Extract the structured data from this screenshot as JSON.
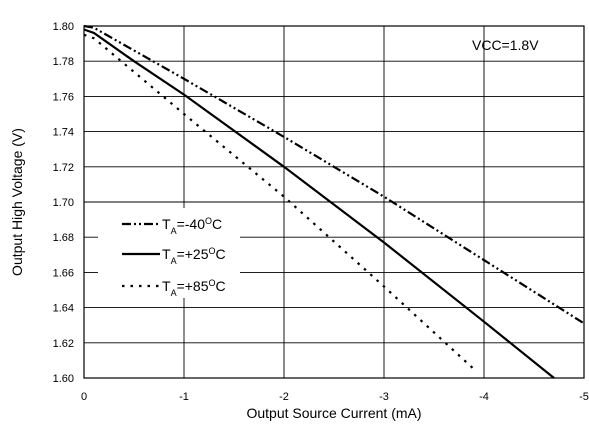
{
  "chart_data": {
    "type": "line",
    "title": "",
    "xlabel": "Output Source Current (mA)",
    "ylabel": "Output High Voltage (V)",
    "xlim": [
      0,
      -5
    ],
    "ylim": [
      1.6,
      1.8
    ],
    "x_ticks": [
      "0",
      "-1",
      "-2",
      "-3",
      "-4",
      "-5"
    ],
    "y_ticks": [
      "1.80",
      "1.78",
      "1.76",
      "1.74",
      "1.72",
      "1.70",
      "1.68",
      "1.66",
      "1.64",
      "1.62",
      "1.60"
    ],
    "grid": true,
    "annotation": "VCC=1.8V",
    "legend_placement": "center-left",
    "series": [
      {
        "name": "TA=-40OC",
        "legend": {
          "prefix": "T",
          "sub": "A",
          "mid": "=-40",
          "sup": "O",
          "suffix": "C"
        },
        "style": "dash-dot-dot",
        "x": [
          0,
          -0.1,
          -1,
          -2,
          -3,
          -4,
          -5
        ],
        "y": [
          1.8,
          1.799,
          1.77,
          1.737,
          1.703,
          1.667,
          1.631
        ]
      },
      {
        "name": "TA=+25OC",
        "legend": {
          "prefix": "T",
          "sub": "A",
          "mid": "=+25",
          "sup": "O",
          "suffix": "C"
        },
        "style": "solid",
        "x": [
          0,
          -0.1,
          -0.5,
          -1,
          -2,
          -3,
          -4,
          -4.7
        ],
        "y": [
          1.798,
          1.796,
          1.78,
          1.761,
          1.72,
          1.677,
          1.632,
          1.6
        ]
      },
      {
        "name": "TA=+85OC",
        "legend": {
          "prefix": "T",
          "sub": "A",
          "mid": "=+85",
          "sup": "O",
          "suffix": "C"
        },
        "style": "dotted",
        "x": [
          0,
          -0.1,
          -1,
          -2,
          -3,
          -3.9
        ],
        "y": [
          1.795,
          1.793,
          1.75,
          1.703,
          1.652,
          1.605
        ]
      }
    ]
  }
}
